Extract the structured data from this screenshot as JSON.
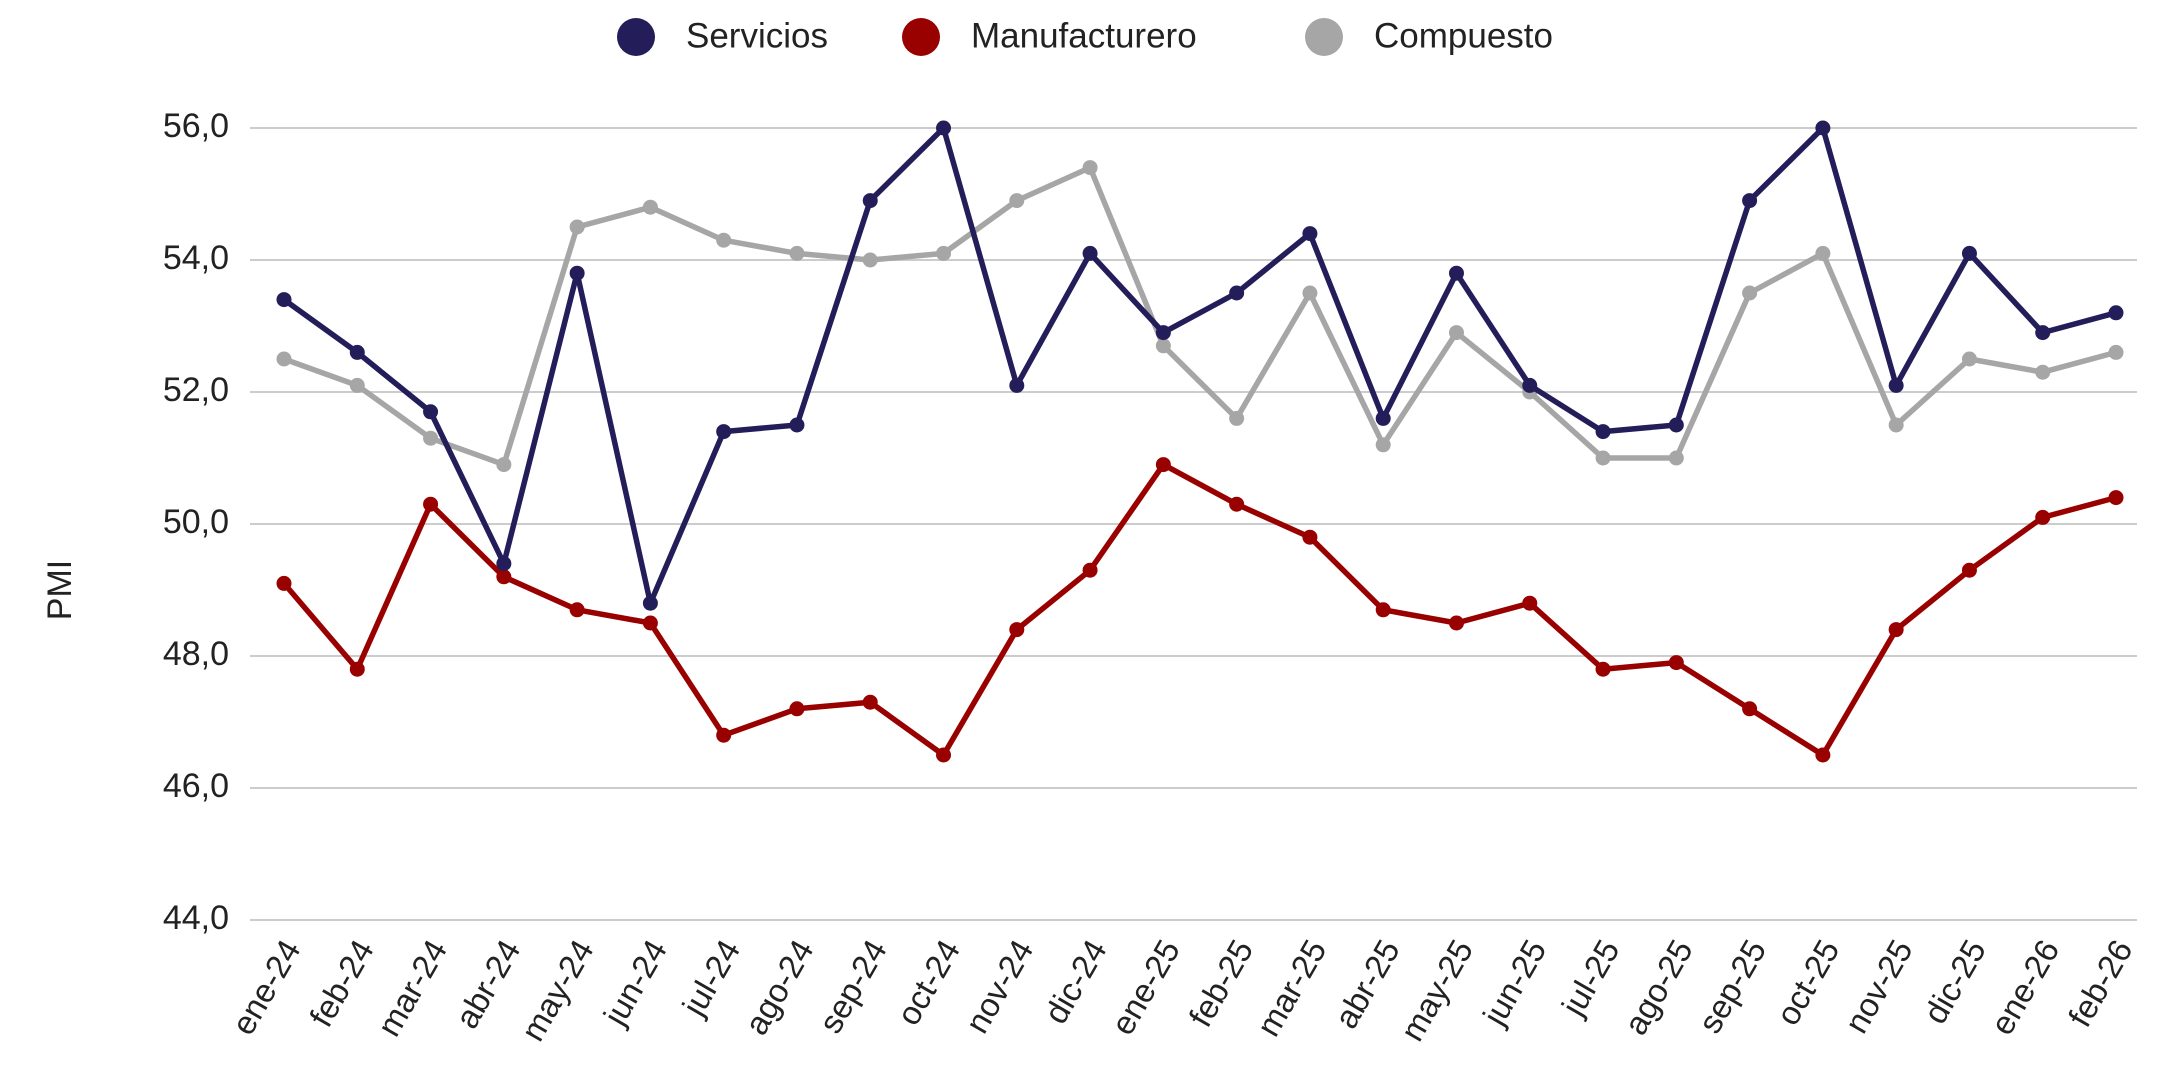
{
  "chart_data": {
    "type": "line",
    "y_label": "PMI",
    "categories": [
      "ene-24",
      "feb-24",
      "mar-24",
      "abr-24",
      "may-24",
      "jun-24",
      "jul-24",
      "ago-24",
      "sep-24",
      "oct-24",
      "nov-24",
      "dic-24",
      "ene-25",
      "feb-25",
      "mar-25",
      "abr-25",
      "may-25",
      "jun-25",
      "jul-25",
      "ago-25",
      "sep-25",
      "oct-25",
      "nov-25",
      "dic-25",
      "ene-26",
      "feb-26"
    ],
    "series": [
      {
        "name": "Servicios",
        "color": "#231d5a",
        "values": [
          53.4,
          52.6,
          51.7,
          49.4,
          53.8,
          48.8,
          51.4,
          51.5,
          54.9,
          56.0,
          52.1,
          54.1,
          52.9,
          53.5,
          54.4,
          51.6,
          53.8,
          52.1,
          51.4,
          51.5,
          54.9,
          56.0,
          52.1,
          54.1,
          52.9,
          53.2
        ]
      },
      {
        "name": "Manufacturero",
        "color": "#990000",
        "values": [
          49.1,
          47.8,
          50.3,
          49.2,
          48.7,
          48.5,
          46.8,
          47.2,
          47.3,
          46.5,
          48.4,
          49.3,
          50.9,
          50.3,
          49.8,
          48.7,
          48.5,
          48.8,
          47.8,
          47.9,
          47.2,
          46.5,
          48.4,
          49.3,
          50.1,
          50.4
        ]
      },
      {
        "name": "Compuesto",
        "color": "#a6a6a6",
        "values": [
          52.5,
          52.1,
          51.3,
          50.9,
          54.5,
          54.8,
          54.3,
          54.1,
          54.0,
          54.1,
          54.9,
          55.4,
          52.7,
          51.6,
          53.5,
          51.2,
          52.9,
          52.0,
          51.0,
          51.0,
          53.5,
          54.1,
          51.5,
          52.5,
          52.3,
          52.6
        ]
      }
    ],
    "ylim": [
      44,
      56
    ],
    "yticks": [
      {
        "value": 44,
        "label": "44,0"
      },
      {
        "value": 46,
        "label": "46,0"
      },
      {
        "value": 48,
        "label": "48,0"
      },
      {
        "value": 50,
        "label": "50,0"
      },
      {
        "value": 52,
        "label": "52,0"
      },
      {
        "value": 54,
        "label": "54,0"
      },
      {
        "value": 56,
        "label": "56,0"
      }
    ],
    "grid": true,
    "legend": "top"
  }
}
